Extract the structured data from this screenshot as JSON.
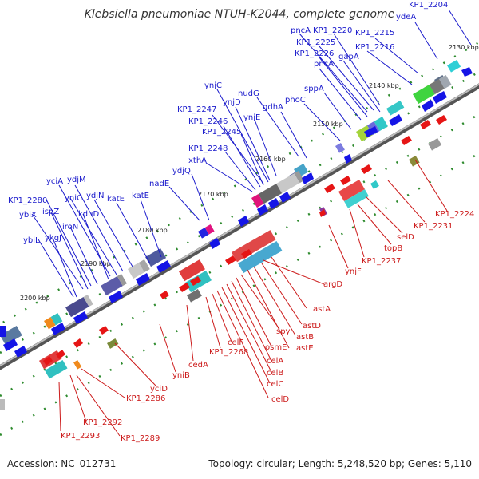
{
  "title": "Klebsiella pneumoniae NTUH-K2044, complete genome",
  "footer": {
    "accession": "Accession: NC_012731",
    "stats": "Topology: circular; Length: 5,248,520 bp; Genes: 5,110"
  },
  "colors": {
    "forward_label": "#1a1acc",
    "reverse_label": "#cc1a1a",
    "forward_arrow": "#1515e6",
    "reverse_arrow": "#e61515",
    "backbone": "#8a8a8a",
    "tick": "#2e8b2e"
  },
  "scale_marks": [
    "2130 kbp",
    "2140 kbp",
    "2150 kbp",
    "2160 kbp",
    "2170 kbp",
    "2180 kbp",
    "2190 kbp",
    "2200 kbp"
  ],
  "forward_genes": [
    "KP1_2204",
    "ydeA",
    "KP1_2215",
    "KP1_2216",
    "KP1_2220",
    "pncA",
    "KP1_2225",
    "KP1_2226",
    "gapA",
    "pncA",
    "sppA",
    "phoC",
    "gdhA",
    "nudG",
    "ynjC",
    "ynjD",
    "ynjE",
    "KP1_2247",
    "KP1_2246",
    "KP1_2245",
    "KP1_2248",
    "xthA",
    "ydjQ",
    "nadE",
    "katE",
    "katE",
    "ydjN",
    "ydjM",
    "yciA",
    "yniC",
    "kduD",
    "KP1_2280",
    "ispZ",
    "ybiX",
    "iroN",
    "ykgJ",
    "ybiL"
  ],
  "reverse_genes": [
    "KP1_2224",
    "KP1_2231",
    "selD",
    "topB",
    "KP1_2237",
    "ynjF",
    "argD",
    "astA",
    "astD",
    "astB",
    "astE",
    "spy",
    "osmE",
    "celA",
    "celB",
    "celC",
    "celD",
    "celF",
    "KP1_2268",
    "cedA",
    "yniB",
    "yciD",
    "KP1_2286",
    "KP1_2292",
    "KP1_2293",
    "KP1_2289"
  ]
}
